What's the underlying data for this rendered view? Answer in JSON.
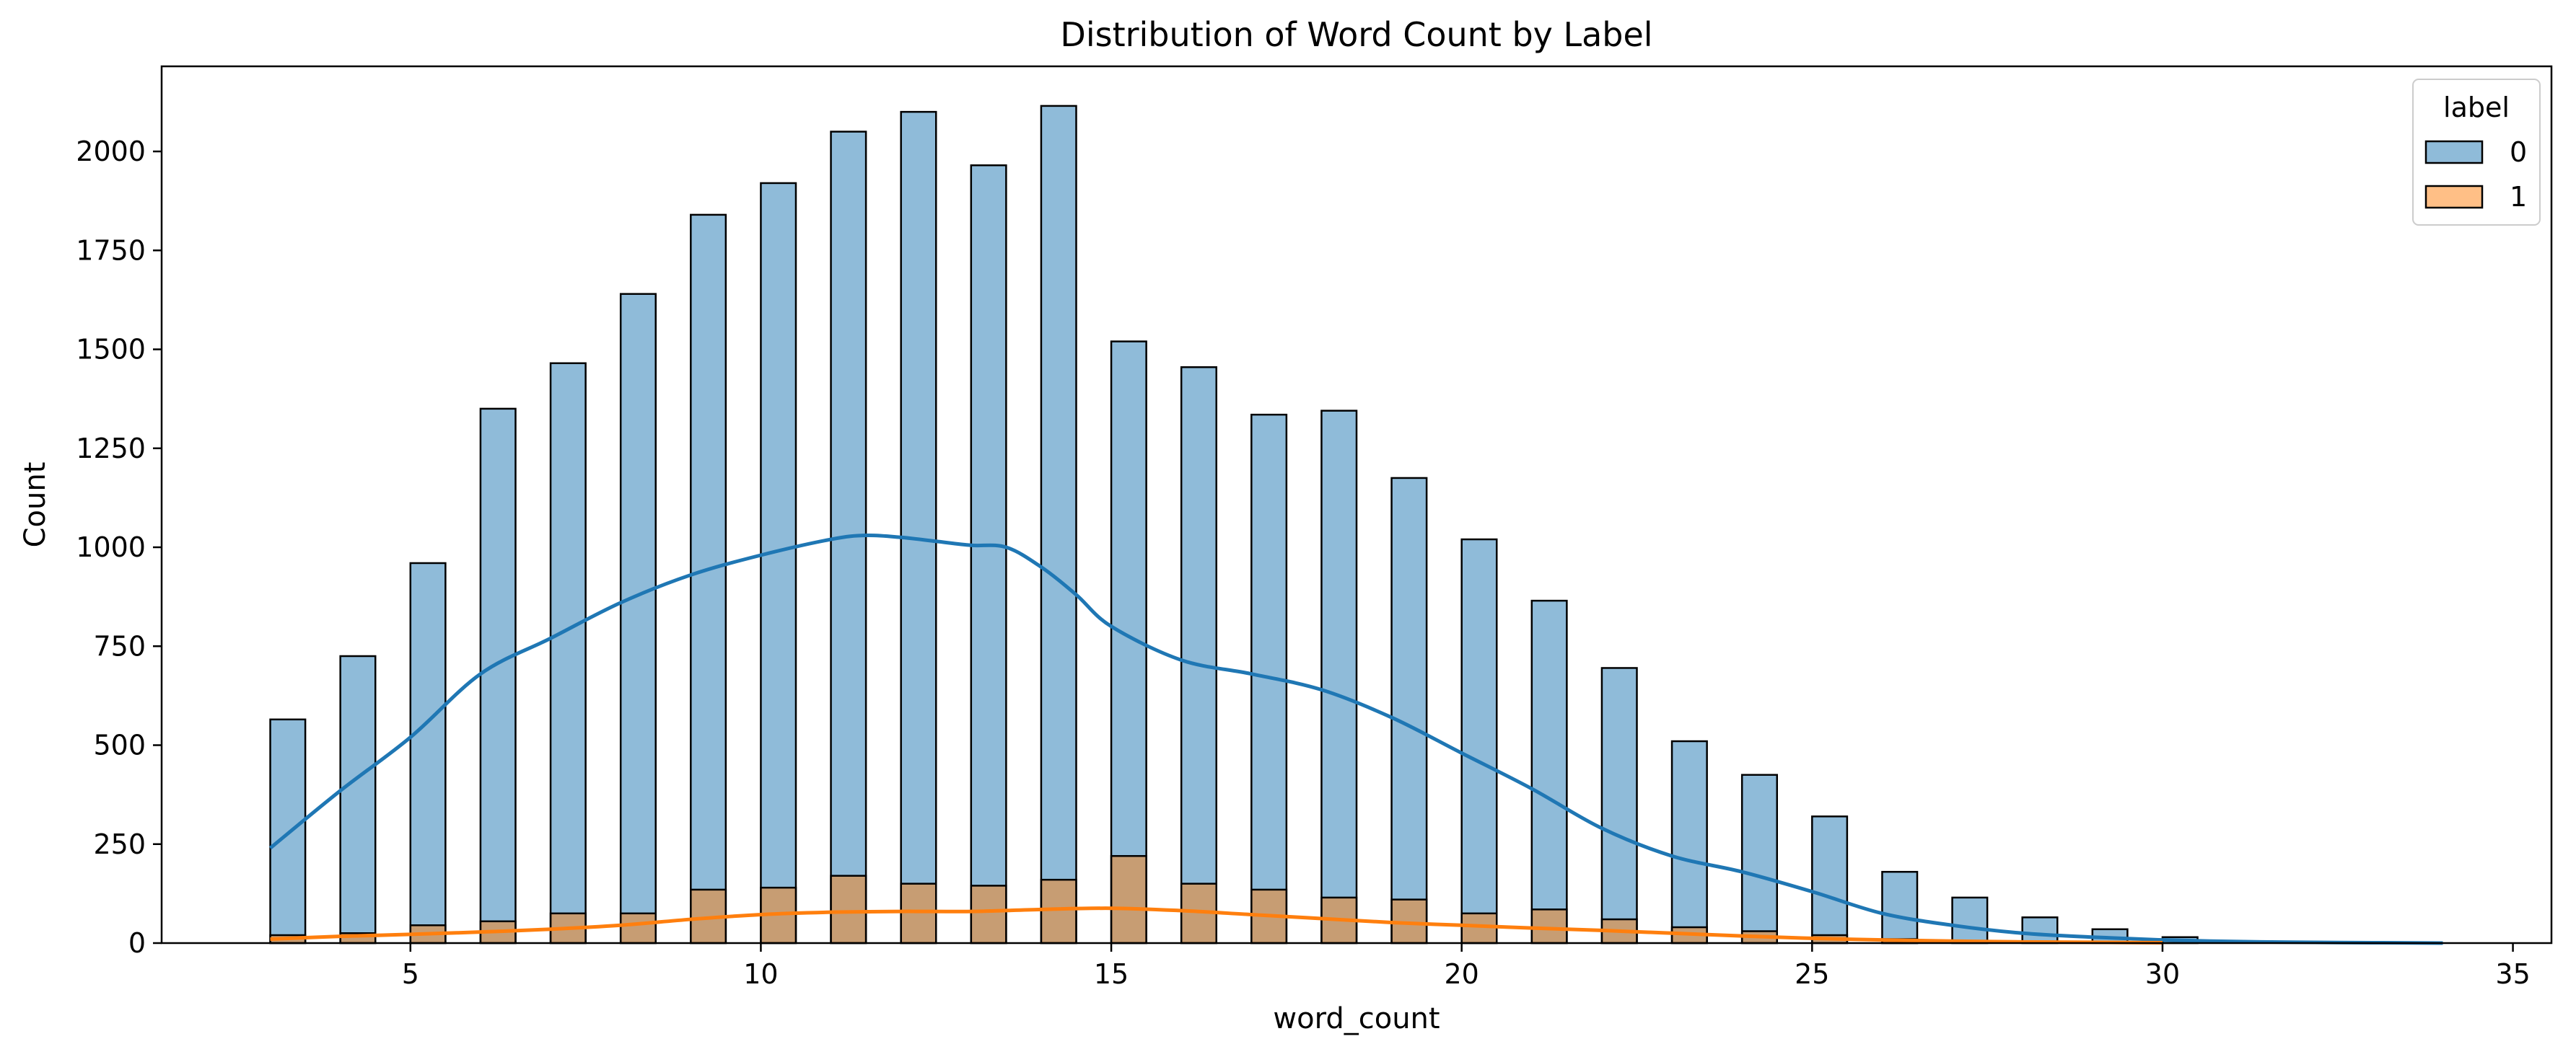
{
  "chart_data": {
    "type": "bar",
    "title": "Distribution of Word Count by Label",
    "xlabel": "word_count",
    "ylabel": "Count",
    "xlim": [
      1.45,
      35.55
    ],
    "ylim": [
      0,
      2215
    ],
    "x_ticks": [
      5,
      10,
      15,
      20,
      25,
      30,
      35
    ],
    "y_ticks": [
      0,
      250,
      500,
      750,
      1000,
      1250,
      1500,
      1750,
      2000
    ],
    "bin_width": 0.5,
    "grid": false,
    "legend": {
      "title": "label",
      "placement": "top-right"
    },
    "series": [
      {
        "name": "0",
        "color": "#1f77b4",
        "bin_starts": [
          3,
          4,
          5,
          6,
          7,
          8,
          9,
          10,
          11,
          12,
          13,
          14,
          15,
          16,
          17,
          18,
          19,
          20,
          21,
          22,
          23,
          24,
          25,
          26,
          27,
          28,
          29,
          30
        ],
        "values": [
          565,
          725,
          960,
          1350,
          1465,
          1640,
          1840,
          1920,
          2050,
          2100,
          1965,
          2115,
          1520,
          1455,
          1335,
          1345,
          1175,
          1020,
          865,
          695,
          510,
          425,
          320,
          180,
          115,
          65,
          35,
          15
        ],
        "kde": {
          "x": [
            3,
            4,
            5,
            6,
            7,
            8,
            9,
            10,
            11,
            11.5,
            12,
            12.5,
            13,
            13.5,
            14,
            14.5,
            15,
            16,
            17,
            18,
            19,
            20,
            21,
            22,
            23,
            24,
            25,
            26,
            27,
            28,
            29,
            30,
            31,
            32,
            33,
            34
          ],
          "y": [
            240,
            385,
            520,
            680,
            770,
            860,
            930,
            980,
            1020,
            1030,
            1025,
            1015,
            1005,
            1000,
            950,
            880,
            800,
            715,
            680,
            640,
            570,
            480,
            390,
            290,
            220,
            180,
            130,
            75,
            45,
            25,
            15,
            8,
            4,
            2,
            1,
            0
          ]
        }
      },
      {
        "name": "1",
        "color": "#ff7f0e",
        "bin_starts": [
          3,
          4,
          5,
          6,
          7,
          8,
          9,
          10,
          11,
          12,
          13,
          14,
          15,
          16,
          17,
          18,
          19,
          20,
          21,
          22,
          23,
          24,
          25,
          26
        ],
        "values": [
          20,
          25,
          45,
          55,
          75,
          75,
          135,
          140,
          170,
          150,
          145,
          160,
          220,
          150,
          135,
          115,
          110,
          75,
          85,
          60,
          40,
          30,
          20,
          10
        ],
        "kde": {
          "x": [
            3,
            4,
            5,
            6,
            7,
            8,
            9,
            10,
            11,
            12,
            13,
            14,
            15,
            16,
            17,
            18,
            19,
            20,
            21,
            22,
            23,
            24,
            25,
            26,
            27,
            28,
            29,
            30
          ],
          "y": [
            10,
            17,
            22,
            28,
            35,
            45,
            60,
            72,
            78,
            80,
            80,
            85,
            88,
            82,
            72,
            62,
            52,
            45,
            38,
            32,
            25,
            18,
            12,
            8,
            5,
            3,
            2,
            1
          ]
        }
      }
    ]
  }
}
